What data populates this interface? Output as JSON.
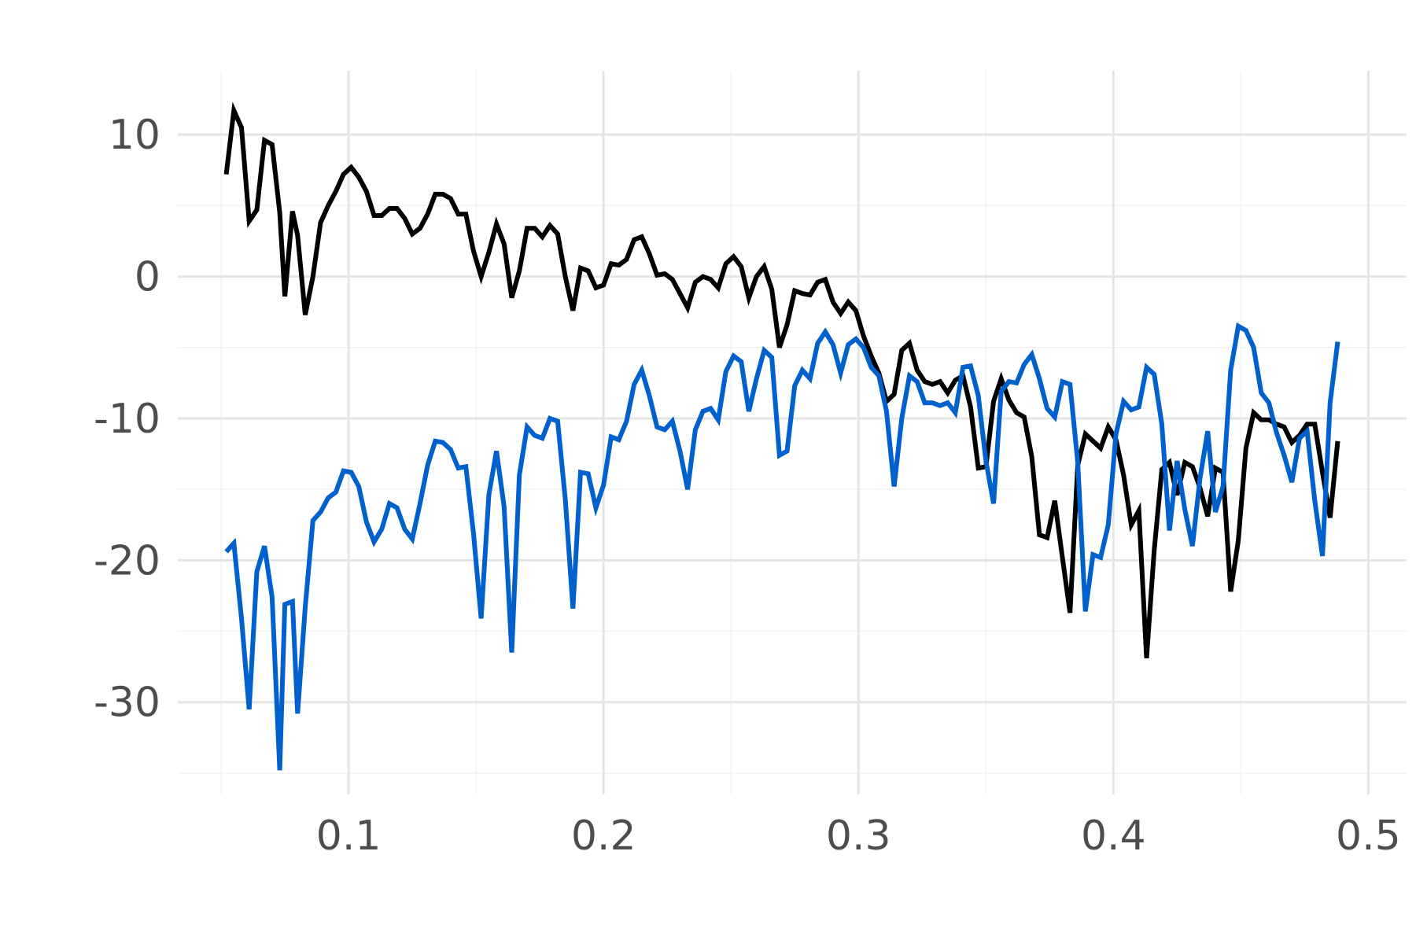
{
  "chart_data": {
    "type": "line",
    "title": "",
    "xlabel": "",
    "ylabel": "",
    "xlim": [
      0.033,
      0.515
    ],
    "ylim": [
      -36.5,
      14.5
    ],
    "x_ticks": [
      0.1,
      0.2,
      0.3,
      0.4,
      0.5
    ],
    "x_tick_labels": [
      "0.1",
      "0.2",
      "0.3",
      "0.4",
      "0.5"
    ],
    "x_minor_ticks": [
      0.05,
      0.15,
      0.25,
      0.35,
      0.45
    ],
    "y_ticks": [
      10,
      0,
      -10,
      -20,
      -30
    ],
    "y_tick_labels": [
      "10",
      "0",
      "-10",
      "-20",
      "-30"
    ],
    "y_minor_ticks": [
      5,
      -5,
      -15,
      -25,
      -35
    ],
    "grid": true,
    "legend": "none",
    "colors": {
      "grid_major": "#e5e5e5",
      "grid_minor": "#f2f2f2",
      "tick_text": "#4d4d4d"
    },
    "series": [
      {
        "color": "#000000",
        "points": [
          [
            0.052,
            7.2
          ],
          [
            0.055,
            11.7
          ],
          [
            0.058,
            10.5
          ],
          [
            0.061,
            3.9
          ],
          [
            0.064,
            4.7
          ],
          [
            0.067,
            9.6
          ],
          [
            0.07,
            9.3
          ],
          [
            0.073,
            4.5
          ],
          [
            0.075,
            -1.4
          ],
          [
            0.078,
            4.6
          ],
          [
            0.08,
            2.9
          ],
          [
            0.083,
            -2.7
          ],
          [
            0.086,
            0.0
          ],
          [
            0.089,
            3.8
          ],
          [
            0.092,
            5.0
          ],
          [
            0.095,
            6.0
          ],
          [
            0.098,
            7.2
          ],
          [
            0.101,
            7.7
          ],
          [
            0.104,
            7.0
          ],
          [
            0.107,
            6.0
          ],
          [
            0.11,
            4.3
          ],
          [
            0.113,
            4.3
          ],
          [
            0.116,
            4.8
          ],
          [
            0.119,
            4.8
          ],
          [
            0.122,
            4.1
          ],
          [
            0.125,
            3.0
          ],
          [
            0.128,
            3.4
          ],
          [
            0.131,
            4.4
          ],
          [
            0.134,
            5.8
          ],
          [
            0.137,
            5.8
          ],
          [
            0.14,
            5.5
          ],
          [
            0.143,
            4.4
          ],
          [
            0.146,
            4.4
          ],
          [
            0.149,
            1.8
          ],
          [
            0.152,
            0.0
          ],
          [
            0.155,
            1.7
          ],
          [
            0.158,
            3.7
          ],
          [
            0.161,
            2.3
          ],
          [
            0.164,
            -1.5
          ],
          [
            0.167,
            0.4
          ],
          [
            0.17,
            3.4
          ],
          [
            0.173,
            3.4
          ],
          [
            0.176,
            2.8
          ],
          [
            0.179,
            3.6
          ],
          [
            0.182,
            3.0
          ],
          [
            0.185,
            0.0
          ],
          [
            0.188,
            -2.4
          ],
          [
            0.191,
            0.6
          ],
          [
            0.194,
            0.4
          ],
          [
            0.197,
            -0.8
          ],
          [
            0.2,
            -0.6
          ],
          [
            0.203,
            0.9
          ],
          [
            0.206,
            0.8
          ],
          [
            0.209,
            1.2
          ],
          [
            0.212,
            2.6
          ],
          [
            0.215,
            2.8
          ],
          [
            0.218,
            1.6
          ],
          [
            0.221,
            0.1
          ],
          [
            0.224,
            0.2
          ],
          [
            0.227,
            -0.2
          ],
          [
            0.23,
            -1.2
          ],
          [
            0.233,
            -2.2
          ],
          [
            0.236,
            -0.4
          ],
          [
            0.239,
            0.0
          ],
          [
            0.242,
            -0.2
          ],
          [
            0.245,
            -0.8
          ],
          [
            0.248,
            0.9
          ],
          [
            0.251,
            1.4
          ],
          [
            0.254,
            0.7
          ],
          [
            0.257,
            -1.5
          ],
          [
            0.26,
            0.0
          ],
          [
            0.263,
            0.7
          ],
          [
            0.266,
            -0.9
          ],
          [
            0.269,
            -5.0
          ],
          [
            0.272,
            -3.4
          ],
          [
            0.275,
            -1.0
          ],
          [
            0.278,
            -1.2
          ],
          [
            0.281,
            -1.3
          ],
          [
            0.284,
            -0.4
          ],
          [
            0.287,
            -0.2
          ],
          [
            0.29,
            -1.8
          ],
          [
            0.293,
            -2.6
          ],
          [
            0.296,
            -1.8
          ],
          [
            0.299,
            -2.4
          ],
          [
            0.302,
            -4.2
          ],
          [
            0.305,
            -5.6
          ],
          [
            0.308,
            -6.8
          ],
          [
            0.311,
            -8.8
          ],
          [
            0.314,
            -8.3
          ],
          [
            0.317,
            -5.2
          ],
          [
            0.32,
            -4.7
          ],
          [
            0.323,
            -6.6
          ],
          [
            0.326,
            -7.4
          ],
          [
            0.329,
            -7.6
          ],
          [
            0.332,
            -7.4
          ],
          [
            0.335,
            -8.2
          ],
          [
            0.338,
            -7.3
          ],
          [
            0.341,
            -7.0
          ],
          [
            0.344,
            -9.2
          ],
          [
            0.347,
            -13.5
          ],
          [
            0.35,
            -13.4
          ],
          [
            0.353,
            -8.8
          ],
          [
            0.356,
            -7.2
          ],
          [
            0.359,
            -8.7
          ],
          [
            0.362,
            -9.6
          ],
          [
            0.365,
            -9.9
          ],
          [
            0.368,
            -12.7
          ],
          [
            0.371,
            -18.2
          ],
          [
            0.374,
            -18.4
          ],
          [
            0.377,
            -15.8
          ],
          [
            0.38,
            -19.8
          ],
          [
            0.383,
            -23.7
          ],
          [
            0.386,
            -13.3
          ],
          [
            0.389,
            -11.1
          ],
          [
            0.392,
            -11.6
          ],
          [
            0.395,
            -12.1
          ],
          [
            0.398,
            -10.6
          ],
          [
            0.401,
            -11.5
          ],
          [
            0.404,
            -14.0
          ],
          [
            0.407,
            -17.5
          ],
          [
            0.41,
            -16.5
          ],
          [
            0.413,
            -26.9
          ],
          [
            0.416,
            -19.3
          ],
          [
            0.419,
            -13.6
          ],
          [
            0.422,
            -13.1
          ],
          [
            0.425,
            -15.4
          ],
          [
            0.428,
            -13.1
          ],
          [
            0.431,
            -13.4
          ],
          [
            0.434,
            -14.9
          ],
          [
            0.437,
            -16.9
          ],
          [
            0.44,
            -13.5
          ],
          [
            0.443,
            -13.8
          ],
          [
            0.446,
            -22.2
          ],
          [
            0.449,
            -18.6
          ],
          [
            0.452,
            -12.1
          ],
          [
            0.455,
            -9.6
          ],
          [
            0.458,
            -10.1
          ],
          [
            0.461,
            -10.1
          ],
          [
            0.464,
            -10.4
          ],
          [
            0.467,
            -10.6
          ],
          [
            0.47,
            -11.7
          ],
          [
            0.473,
            -11.2
          ],
          [
            0.476,
            -10.4
          ],
          [
            0.479,
            -10.4
          ],
          [
            0.482,
            -13.8
          ],
          [
            0.485,
            -17.0
          ],
          [
            0.488,
            -11.6
          ]
        ]
      },
      {
        "color": "#0060cc",
        "points": [
          [
            0.052,
            -19.4
          ],
          [
            0.055,
            -18.8
          ],
          [
            0.058,
            -24.1
          ],
          [
            0.061,
            -30.5
          ],
          [
            0.064,
            -20.8
          ],
          [
            0.067,
            -19.0
          ],
          [
            0.07,
            -22.6
          ],
          [
            0.073,
            -34.8
          ],
          [
            0.075,
            -23.1
          ],
          [
            0.078,
            -22.9
          ],
          [
            0.08,
            -30.8
          ],
          [
            0.083,
            -23.3
          ],
          [
            0.086,
            -17.2
          ],
          [
            0.089,
            -16.6
          ],
          [
            0.092,
            -15.6
          ],
          [
            0.095,
            -15.2
          ],
          [
            0.098,
            -13.7
          ],
          [
            0.101,
            -13.8
          ],
          [
            0.104,
            -14.8
          ],
          [
            0.107,
            -17.3
          ],
          [
            0.11,
            -18.7
          ],
          [
            0.113,
            -17.8
          ],
          [
            0.116,
            -16.0
          ],
          [
            0.119,
            -16.3
          ],
          [
            0.122,
            -17.8
          ],
          [
            0.125,
            -18.5
          ],
          [
            0.128,
            -16.0
          ],
          [
            0.131,
            -13.3
          ],
          [
            0.134,
            -11.6
          ],
          [
            0.137,
            -11.7
          ],
          [
            0.14,
            -12.2
          ],
          [
            0.143,
            -13.5
          ],
          [
            0.146,
            -13.4
          ],
          [
            0.149,
            -18.1
          ],
          [
            0.152,
            -24.1
          ],
          [
            0.155,
            -15.4
          ],
          [
            0.158,
            -12.3
          ],
          [
            0.161,
            -16.2
          ],
          [
            0.164,
            -26.5
          ],
          [
            0.167,
            -14.0
          ],
          [
            0.17,
            -10.6
          ],
          [
            0.173,
            -11.2
          ],
          [
            0.176,
            -11.4
          ],
          [
            0.179,
            -10.0
          ],
          [
            0.182,
            -10.2
          ],
          [
            0.185,
            -15.7
          ],
          [
            0.188,
            -23.4
          ],
          [
            0.191,
            -13.8
          ],
          [
            0.194,
            -13.9
          ],
          [
            0.197,
            -16.3
          ],
          [
            0.2,
            -14.7
          ],
          [
            0.203,
            -11.3
          ],
          [
            0.206,
            -11.5
          ],
          [
            0.209,
            -10.2
          ],
          [
            0.212,
            -7.6
          ],
          [
            0.215,
            -6.6
          ],
          [
            0.218,
            -8.4
          ],
          [
            0.221,
            -10.6
          ],
          [
            0.224,
            -10.8
          ],
          [
            0.227,
            -10.2
          ],
          [
            0.23,
            -12.3
          ],
          [
            0.233,
            -15.0
          ],
          [
            0.236,
            -10.8
          ],
          [
            0.239,
            -9.5
          ],
          [
            0.242,
            -9.3
          ],
          [
            0.245,
            -10.1
          ],
          [
            0.248,
            -6.7
          ],
          [
            0.251,
            -5.6
          ],
          [
            0.254,
            -6.0
          ],
          [
            0.257,
            -9.5
          ],
          [
            0.26,
            -7.2
          ],
          [
            0.263,
            -5.2
          ],
          [
            0.266,
            -5.7
          ],
          [
            0.269,
            -12.6
          ],
          [
            0.272,
            -12.3
          ],
          [
            0.275,
            -7.7
          ],
          [
            0.278,
            -6.6
          ],
          [
            0.281,
            -7.2
          ],
          [
            0.284,
            -4.7
          ],
          [
            0.287,
            -3.9
          ],
          [
            0.29,
            -4.8
          ],
          [
            0.293,
            -6.8
          ],
          [
            0.296,
            -4.8
          ],
          [
            0.299,
            -4.4
          ],
          [
            0.302,
            -5.0
          ],
          [
            0.305,
            -6.4
          ],
          [
            0.308,
            -7.0
          ],
          [
            0.311,
            -9.5
          ],
          [
            0.314,
            -14.8
          ],
          [
            0.317,
            -10.0
          ],
          [
            0.32,
            -7.0
          ],
          [
            0.323,
            -7.4
          ],
          [
            0.326,
            -8.9
          ],
          [
            0.329,
            -8.9
          ],
          [
            0.332,
            -9.1
          ],
          [
            0.335,
            -8.9
          ],
          [
            0.338,
            -9.6
          ],
          [
            0.341,
            -6.4
          ],
          [
            0.344,
            -6.3
          ],
          [
            0.347,
            -8.4
          ],
          [
            0.35,
            -13.0
          ],
          [
            0.353,
            -16.0
          ],
          [
            0.356,
            -8.1
          ],
          [
            0.359,
            -7.4
          ],
          [
            0.362,
            -7.5
          ],
          [
            0.365,
            -6.2
          ],
          [
            0.368,
            -5.5
          ],
          [
            0.371,
            -7.2
          ],
          [
            0.374,
            -9.3
          ],
          [
            0.377,
            -9.9
          ],
          [
            0.38,
            -7.4
          ],
          [
            0.383,
            -7.6
          ],
          [
            0.386,
            -13.1
          ],
          [
            0.389,
            -23.6
          ],
          [
            0.392,
            -19.6
          ],
          [
            0.395,
            -19.8
          ],
          [
            0.398,
            -17.5
          ],
          [
            0.401,
            -11.1
          ],
          [
            0.404,
            -8.8
          ],
          [
            0.407,
            -9.4
          ],
          [
            0.41,
            -9.2
          ],
          [
            0.413,
            -6.4
          ],
          [
            0.416,
            -6.9
          ],
          [
            0.419,
            -10.4
          ],
          [
            0.422,
            -17.9
          ],
          [
            0.425,
            -13.0
          ],
          [
            0.428,
            -16.4
          ],
          [
            0.431,
            -19.0
          ],
          [
            0.434,
            -14.2
          ],
          [
            0.437,
            -10.9
          ],
          [
            0.44,
            -16.6
          ],
          [
            0.443,
            -14.8
          ],
          [
            0.446,
            -6.6
          ],
          [
            0.449,
            -3.5
          ],
          [
            0.452,
            -3.8
          ],
          [
            0.455,
            -5.0
          ],
          [
            0.458,
            -8.2
          ],
          [
            0.461,
            -8.9
          ],
          [
            0.464,
            -11.0
          ],
          [
            0.467,
            -12.6
          ],
          [
            0.47,
            -14.5
          ],
          [
            0.473,
            -11.4
          ],
          [
            0.476,
            -10.9
          ],
          [
            0.479,
            -15.8
          ],
          [
            0.482,
            -19.7
          ],
          [
            0.485,
            -8.9
          ],
          [
            0.488,
            -4.6
          ]
        ]
      }
    ]
  }
}
